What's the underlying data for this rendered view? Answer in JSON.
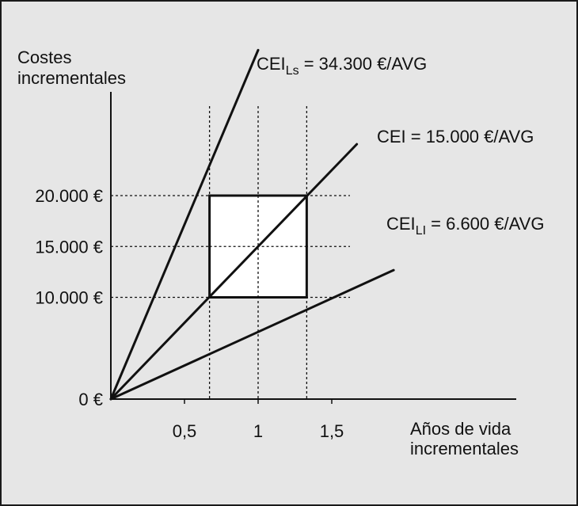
{
  "y_axis_label": [
    "Costes",
    "incrementales"
  ],
  "x_axis_label": [
    "Años de vida",
    "incrementales"
  ],
  "y_ticks": [
    {
      "value": 0,
      "label": "0 €"
    },
    {
      "value": 10000,
      "label": "10.000 €"
    },
    {
      "value": 15000,
      "label": "15.000 €"
    },
    {
      "value": 20000,
      "label": "20.000 €"
    }
  ],
  "x_ticks": [
    {
      "value": 0.5,
      "label": "0,5"
    },
    {
      "value": 1,
      "label": "1"
    },
    {
      "value": 1.5,
      "label": "1,5"
    }
  ],
  "lines": [
    {
      "id": "upper",
      "slope": 34300,
      "label_main": "CEI",
      "label_sub": "Ls",
      "label_rest": " = 34.300 €/AVG"
    },
    {
      "id": "mid",
      "slope": 15000,
      "label_main": "CEI = 15.000 €/AVG",
      "label_sub": "",
      "label_rest": ""
    },
    {
      "id": "lower",
      "slope": 6600,
      "label_main": "CEI",
      "label_sub": "LI",
      "label_rest": " = 6.600 €/AVG"
    }
  ],
  "uncertainty_box": {
    "x_min": 0.67,
    "x_max": 1.33,
    "y_min": 10000,
    "y_max": 20000
  }
}
